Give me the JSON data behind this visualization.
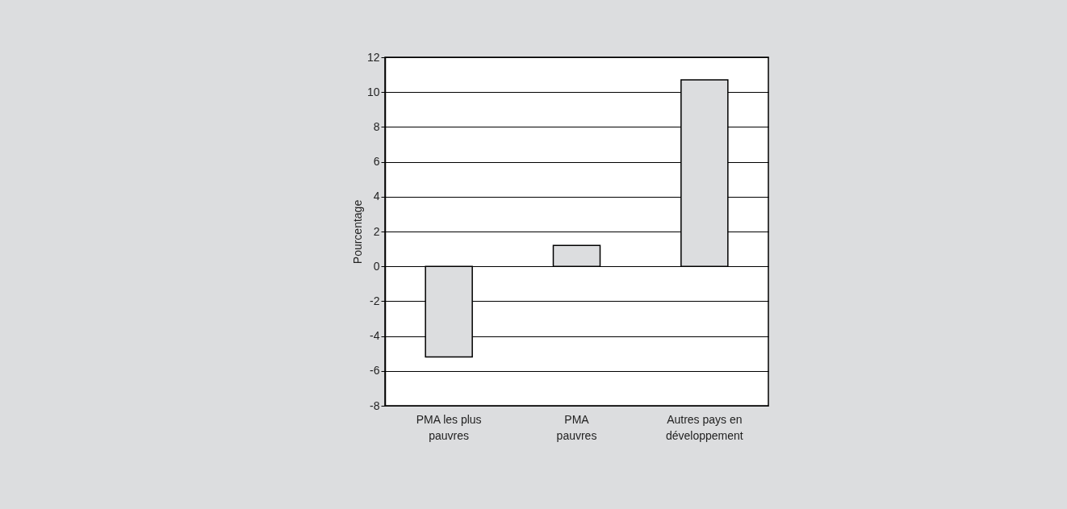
{
  "chart_data": {
    "type": "bar",
    "ylabel": "Pourcentage",
    "categories": [
      "PMA les plus\npauvres",
      "PMA\npauvres",
      "Autres pays en\ndéveloppement"
    ],
    "values": [
      -5.2,
      1.2,
      10.7
    ],
    "color": "#dcdddf",
    "ylim": [
      -8,
      12
    ],
    "yticks": [
      -8,
      -6,
      -4,
      -2,
      0,
      2,
      4,
      6,
      8,
      10,
      12
    ],
    "grid": "y"
  }
}
